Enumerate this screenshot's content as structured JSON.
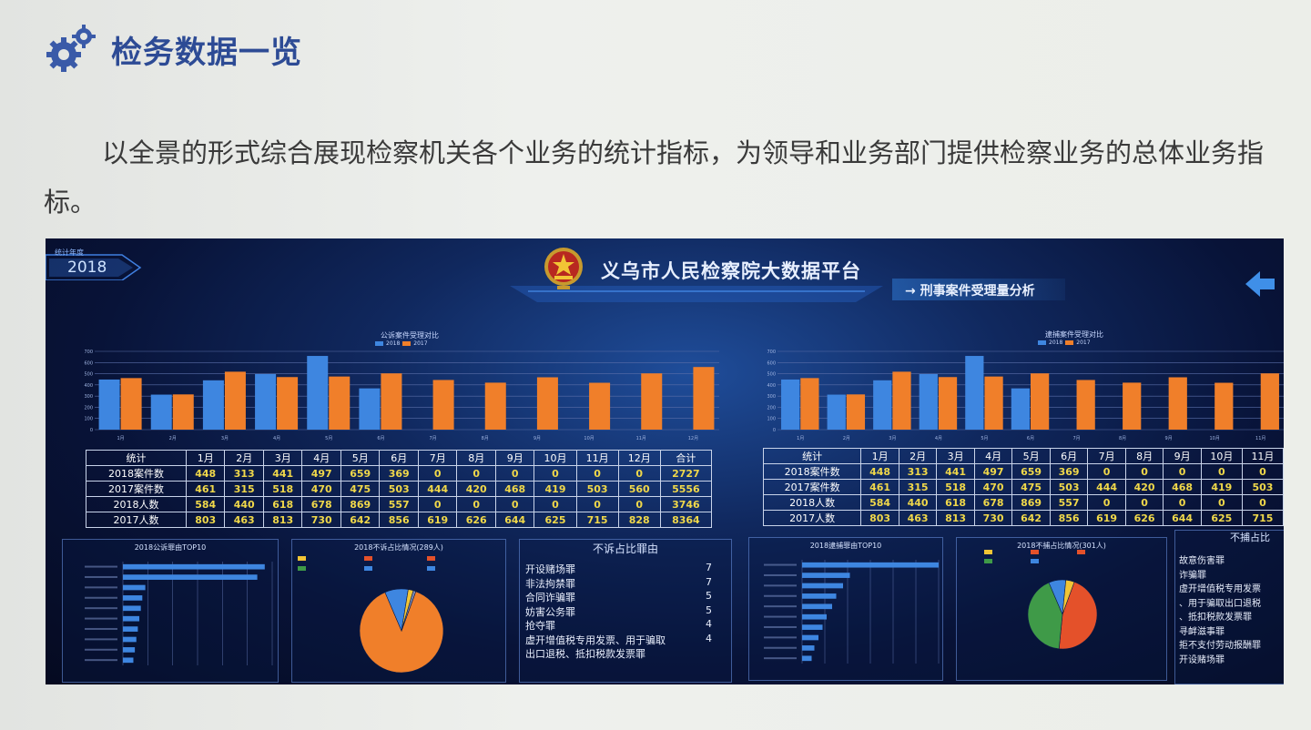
{
  "heading": {
    "title": "检务数据一览",
    "icon": "gear-icon"
  },
  "paragraph": "以全景的形式综合展现检察机关各个业务的统计指标，为领导和业务部门提供检察业务的总体业务指标。",
  "dashboard": {
    "year_tab": {
      "label": "统计年度",
      "year": "2018"
    },
    "title": "义乌市人民检察院大数据平台",
    "subtitle": "→ 刑事案件受理量分析",
    "colors": {
      "series_2018": "#3e86e0",
      "series_2017": "#f07f2a",
      "grid": "#5a6ea8",
      "table_value": "#f0d84a"
    },
    "left_chart": {
      "title": "公诉案件受理对比",
      "legend": [
        "2018",
        "2017"
      ]
    },
    "right_chart": {
      "title": "逮捕案件受理对比",
      "legend": [
        "2018",
        "2017"
      ]
    },
    "left_table": {
      "headers": [
        "统计",
        "1月",
        "2月",
        "3月",
        "4月",
        "5月",
        "6月",
        "7月",
        "8月",
        "9月",
        "10月",
        "11月",
        "12月",
        "合计"
      ],
      "rows": [
        {
          "label": "2018案件数",
          "values": [
            "448",
            "313",
            "441",
            "497",
            "659",
            "369",
            "0",
            "0",
            "0",
            "0",
            "0",
            "0",
            "2727"
          ]
        },
        {
          "label": "2017案件数",
          "values": [
            "461",
            "315",
            "518",
            "470",
            "475",
            "503",
            "444",
            "420",
            "468",
            "419",
            "503",
            "560",
            "5556"
          ]
        },
        {
          "label": "2018人数",
          "values": [
            "584",
            "440",
            "618",
            "678",
            "869",
            "557",
            "0",
            "0",
            "0",
            "0",
            "0",
            "0",
            "3746"
          ]
        },
        {
          "label": "2017人数",
          "values": [
            "803",
            "463",
            "813",
            "730",
            "642",
            "856",
            "619",
            "626",
            "644",
            "625",
            "715",
            "828",
            "8364"
          ]
        }
      ]
    },
    "right_table": {
      "headers": [
        "统计",
        "1月",
        "2月",
        "3月",
        "4月",
        "5月",
        "6月",
        "7月",
        "8月",
        "9月",
        "10月",
        "11月"
      ],
      "rows": [
        {
          "label": "2018案件数",
          "values": [
            "448",
            "313",
            "441",
            "497",
            "659",
            "369",
            "0",
            "0",
            "0",
            "0",
            "0"
          ]
        },
        {
          "label": "2017案件数",
          "values": [
            "461",
            "315",
            "518",
            "470",
            "475",
            "503",
            "444",
            "420",
            "468",
            "419",
            "503"
          ]
        },
        {
          "label": "2018人数",
          "values": [
            "584",
            "440",
            "618",
            "678",
            "869",
            "557",
            "0",
            "0",
            "0",
            "0",
            "0"
          ]
        },
        {
          "label": "2017人数",
          "values": [
            "803",
            "463",
            "813",
            "730",
            "642",
            "856",
            "619",
            "626",
            "644",
            "625",
            "715"
          ]
        }
      ]
    },
    "bottom": {
      "top10_left_title": "2018公诉罪由TOP10",
      "pie_left_title": "2018不诉占比情况(289人)",
      "reasons_title": "不诉占比罪由",
      "top10_right_title": "2018逮捕罪由TOP10",
      "pie_right_title": "2018不捕占比情况(301人)",
      "reasons_right_title": "不捕占比",
      "reasons": [
        {
          "name": "开设赌场罪",
          "count": "7"
        },
        {
          "name": "非法拘禁罪",
          "count": "7"
        },
        {
          "name": "合同诈骗罪",
          "count": "5"
        },
        {
          "name": "妨害公务罪",
          "count": "5"
        },
        {
          "name": "抢夺罪",
          "count": "4"
        },
        {
          "name": "虚开增值税专用发票、用于骗取出口退税、抵扣税款发票罪",
          "count": "4"
        }
      ],
      "reasons_right": [
        "故意伤害罪",
        "诈骗罪",
        "虚开增值税专用发票、用于骗取出口退税、抵扣税款发票罪",
        "寻衅滋事罪",
        "拒不支付劳动报酬罪",
        "开设赌场罪"
      ]
    }
  },
  "chart_data": [
    {
      "type": "bar",
      "title": "公诉案件受理对比",
      "categories": [
        "1月",
        "2月",
        "3月",
        "4月",
        "5月",
        "6月",
        "7月",
        "8月",
        "9月",
        "10月",
        "11月",
        "12月"
      ],
      "series": [
        {
          "name": "2018",
          "values": [
            448,
            313,
            441,
            497,
            659,
            369,
            0,
            0,
            0,
            0,
            0,
            0
          ]
        },
        {
          "name": "2017",
          "values": [
            461,
            315,
            518,
            470,
            475,
            503,
            444,
            420,
            468,
            419,
            503,
            560
          ]
        }
      ],
      "ylim": [
        0,
        700
      ],
      "grid": true
    },
    {
      "type": "bar",
      "title": "逮捕案件受理对比",
      "categories": [
        "1月",
        "2月",
        "3月",
        "4月",
        "5月",
        "6月",
        "7月",
        "8月",
        "9月",
        "10月",
        "11月"
      ],
      "series": [
        {
          "name": "2018",
          "values": [
            448,
            313,
            441,
            497,
            659,
            369,
            0,
            0,
            0,
            0,
            0
          ]
        },
        {
          "name": "2017",
          "values": [
            461,
            315,
            518,
            470,
            475,
            503,
            444,
            420,
            468,
            419,
            503
          ]
        }
      ],
      "ylim": [
        0,
        700
      ],
      "grid": true
    },
    {
      "type": "bar",
      "title": "2018公诉罪由TOP10",
      "orientation": "horizontal",
      "values": [
        95,
        90,
        15,
        13,
        12,
        11,
        10,
        9,
        8,
        7
      ],
      "grid": true
    },
    {
      "type": "pie",
      "title": "2018不诉占比情况(289人)",
      "values": [
        88,
        9,
        2,
        1
      ],
      "colors": [
        "#f07f2a",
        "#3e86e0",
        "#f2c535",
        "#7a8bb8"
      ]
    },
    {
      "type": "bar",
      "title": "2018逮捕罪由TOP10",
      "orientation": "horizontal",
      "values": [
        100,
        35,
        30,
        25,
        22,
        18,
        15,
        12,
        9,
        7
      ],
      "grid": true
    },
    {
      "type": "pie",
      "title": "2018不捕占比情况(301人)",
      "values": [
        46,
        42,
        8,
        4
      ],
      "colors": [
        "#e4512a",
        "#3f9a48",
        "#3e86e0",
        "#f2c535"
      ]
    }
  ]
}
